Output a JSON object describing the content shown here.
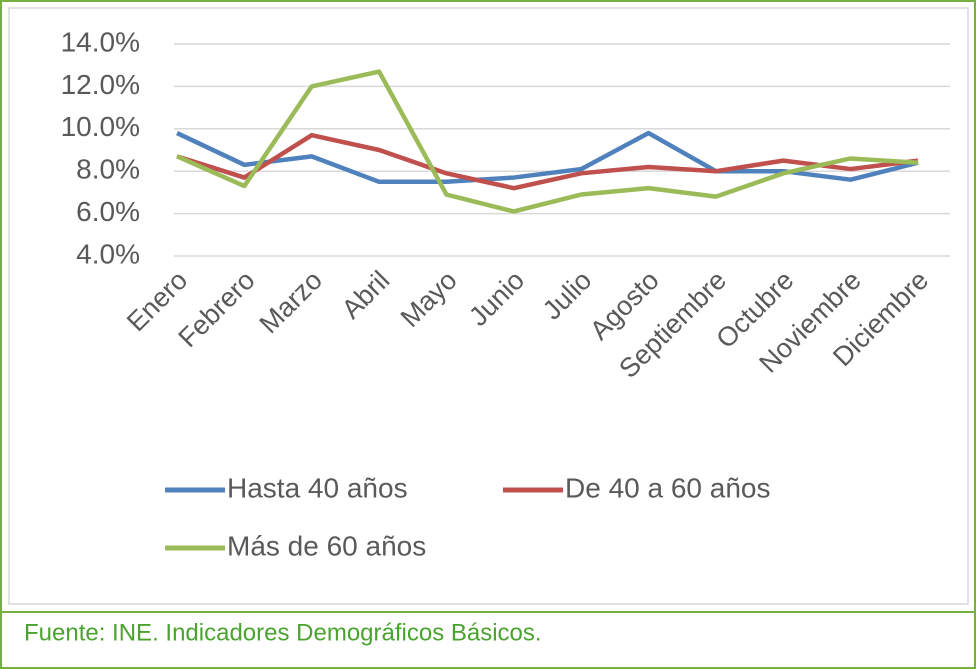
{
  "chart_data": {
    "type": "line",
    "categories": [
      "Enero",
      "Febrero",
      "Marzo",
      "Abril",
      "Mayo",
      "Junio",
      "Julio",
      "Agosto",
      "Septiembre",
      "Octubre",
      "Noviembre",
      "Diciembre"
    ],
    "series": [
      {
        "name": "Hasta 40 años",
        "color": "#4f81bd",
        "values": [
          9.8,
          8.3,
          8.7,
          7.5,
          7.5,
          7.7,
          8.1,
          9.8,
          8.0,
          8.0,
          7.6,
          8.4
        ]
      },
      {
        "name": "De 40 a 60 años",
        "color": "#c0504d",
        "values": [
          8.7,
          7.7,
          9.7,
          9.0,
          7.9,
          7.2,
          7.9,
          8.2,
          8.0,
          8.5,
          8.1,
          8.5
        ]
      },
      {
        "name": "Más de 60 años",
        "color": "#9bbb59",
        "values": [
          8.7,
          7.3,
          12.0,
          12.7,
          6.9,
          6.1,
          6.9,
          7.2,
          6.8,
          7.9,
          8.6,
          8.4
        ]
      }
    ],
    "ylim": [
      4,
      14
    ],
    "yticks": [
      {
        "value": 4,
        "label": "4.0%"
      },
      {
        "value": 6,
        "label": "6.0%"
      },
      {
        "value": 8,
        "label": "8.0%"
      },
      {
        "value": 10,
        "label": "10.0%"
      },
      {
        "value": 12,
        "label": "12.0%"
      },
      {
        "value": 14,
        "label": "14.0%"
      }
    ],
    "grid": true,
    "legend": "bottom"
  },
  "footer": {
    "source": "Fuente: INE. Indicadores Demográficos Básicos."
  }
}
